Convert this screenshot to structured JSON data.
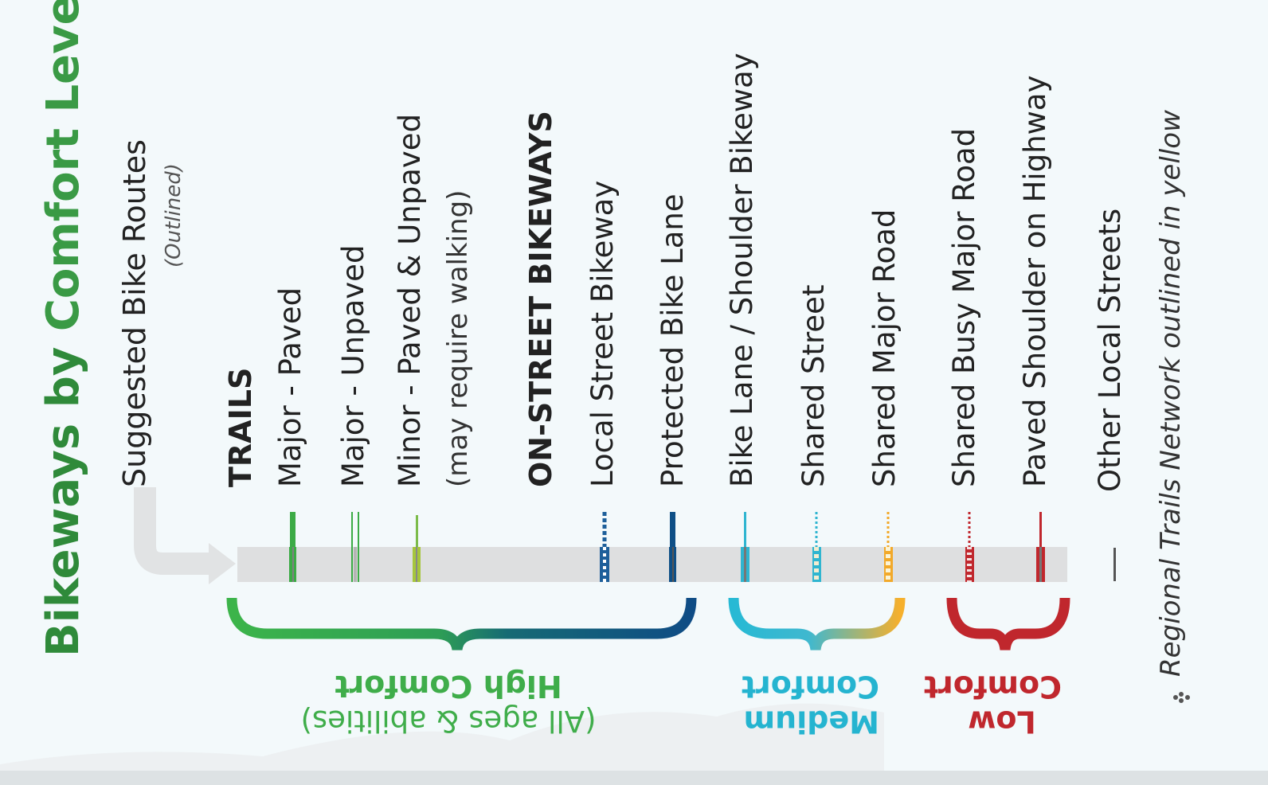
{
  "title": {
    "pre": "Bikeways by ",
    "accent": "Comfort Level",
    "pre_color": "#2f8a3a",
    "accent_color": "#3a9a45"
  },
  "suggested_routes": {
    "label": "Suggested Bike Routes",
    "note": "(Outlined)"
  },
  "trails": {
    "heading": "TRAILS",
    "items": [
      {
        "label": "Major - Paved",
        "style": "solid",
        "color": "#3cab46"
      },
      {
        "label": "Major - Unpaved",
        "style": "double",
        "color": "#3cab46"
      },
      {
        "label": "Minor - Paved & Unpaved",
        "sublabel": "(may require walking)",
        "style": "thin",
        "color": "#8cc63e"
      }
    ]
  },
  "on_street": {
    "heading": "ON-STREET BIKEWAYS",
    "items": [
      {
        "label": "Local Street Bikeway",
        "style": "dashed",
        "color": "#1e5f9a"
      },
      {
        "label": "Protected Bike Lane",
        "style": "solid",
        "color": "#0e4f86"
      },
      {
        "label": "Bike Lane / Shoulder Bikeway",
        "style": "solid",
        "color": "#2fb5d0"
      },
      {
        "label": "Shared Street",
        "style": "dotted",
        "color": "#2fb5d0"
      },
      {
        "label": "Shared Major Road",
        "style": "dotted",
        "color": "#f2a92a"
      },
      {
        "label": "Shared Busy Major Road",
        "style": "dotted",
        "color": "#c0272d"
      },
      {
        "label": "Paved Shoulder on Highway",
        "style": "solid",
        "color": "#c0272d"
      },
      {
        "label": "Other Local Streets",
        "style": "thin",
        "color": "#555555"
      }
    ]
  },
  "comfort_levels": [
    {
      "label": "High Comfort",
      "sub": "(All ages & abilities)",
      "color": "#3fad4a",
      "grad_from": "#3cb44a",
      "grad_to": "#0f4c85"
    },
    {
      "label": "Medium Comfort",
      "color": "#25b4d0",
      "grad_from": "#27b9d4",
      "grad_to": "#f6b02c"
    },
    {
      "label": "Low Comfort",
      "color": "#c0272d",
      "grad_from": "#c0272d",
      "grad_to": "#c0272d"
    }
  ],
  "footnote": {
    "icon": "flower-icon",
    "text": "Regional Trails Network outlined in yellow"
  }
}
